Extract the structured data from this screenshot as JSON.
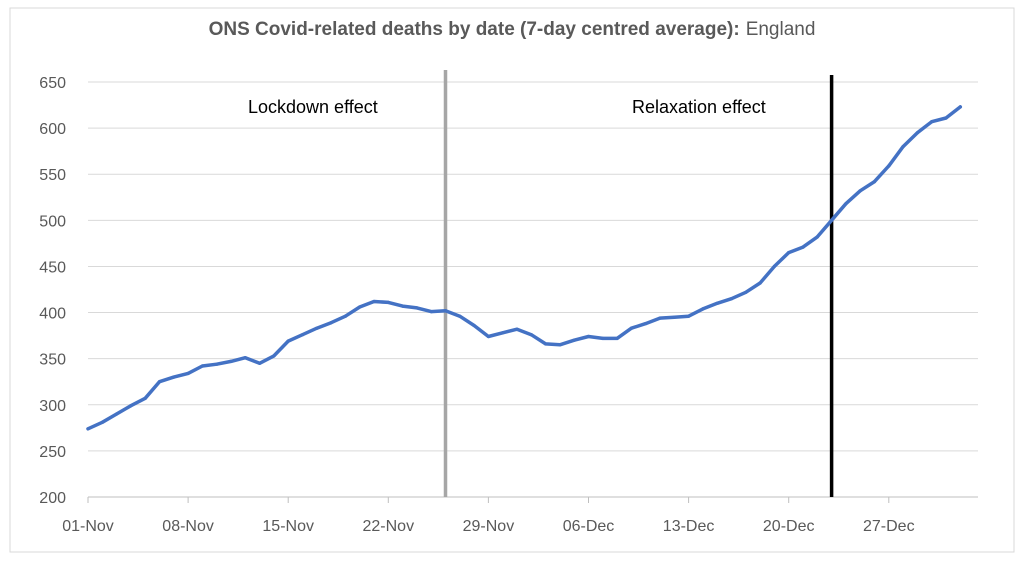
{
  "chart_data": {
    "type": "line",
    "title": "ONS Covid-related deaths by date (7-day centred average):",
    "subtitle": "England",
    "xlabel": "",
    "ylabel": "",
    "ylim": [
      200,
      650
    ],
    "yticks": [
      200,
      250,
      300,
      350,
      400,
      450,
      500,
      550,
      600,
      650
    ],
    "x_tick_labels": [
      "01-Nov",
      "08-Nov",
      "15-Nov",
      "22-Nov",
      "29-Nov",
      "06-Dec",
      "13-Dec",
      "20-Dec",
      "27-Dec"
    ],
    "x": [
      "01-Nov",
      "02-Nov",
      "03-Nov",
      "04-Nov",
      "05-Nov",
      "06-Nov",
      "07-Nov",
      "08-Nov",
      "09-Nov",
      "10-Nov",
      "11-Nov",
      "12-Nov",
      "13-Nov",
      "14-Nov",
      "15-Nov",
      "16-Nov",
      "17-Nov",
      "18-Nov",
      "19-Nov",
      "20-Nov",
      "21-Nov",
      "22-Nov",
      "23-Nov",
      "24-Nov",
      "25-Nov",
      "26-Nov",
      "27-Nov",
      "28-Nov",
      "29-Nov",
      "30-Nov",
      "01-Dec",
      "02-Dec",
      "03-Dec",
      "04-Dec",
      "05-Dec",
      "06-Dec",
      "07-Dec",
      "08-Dec",
      "09-Dec",
      "10-Dec",
      "11-Dec",
      "12-Dec",
      "13-Dec",
      "14-Dec",
      "15-Dec",
      "16-Dec",
      "17-Dec",
      "18-Dec",
      "19-Dec",
      "20-Dec",
      "21-Dec",
      "22-Dec",
      "23-Dec",
      "24-Dec",
      "25-Dec",
      "26-Dec",
      "27-Dec",
      "28-Dec",
      "29-Dec",
      "30-Dec",
      "31-Dec",
      "01-Jan",
      "02-Jan"
    ],
    "series": [
      {
        "color": "#4472c4",
        "values": [
          274,
          281,
          290,
          299,
          307,
          325,
          330,
          334,
          342,
          344,
          347,
          351,
          345,
          353,
          369,
          376,
          383,
          389,
          396,
          406,
          412,
          411,
          407,
          405,
          401,
          402,
          396,
          386,
          374,
          378,
          382,
          376,
          366,
          365,
          370,
          374,
          372,
          372,
          383,
          388,
          394,
          395,
          396,
          404,
          410,
          415,
          422,
          432,
          450,
          465,
          471,
          482,
          500,
          518,
          532,
          542,
          559,
          580,
          595,
          607,
          611,
          623,
          null
        ]
      }
    ],
    "vertical_markers": [
      {
        "x": "26-Nov",
        "color": "#a6a6a6"
      },
      {
        "x": "23-Dec",
        "color": "#000000"
      }
    ],
    "annotations": [
      {
        "text": "Lockdown effect"
      },
      {
        "text": "Relaxation effect"
      }
    ],
    "grid": true,
    "legend": "none"
  }
}
